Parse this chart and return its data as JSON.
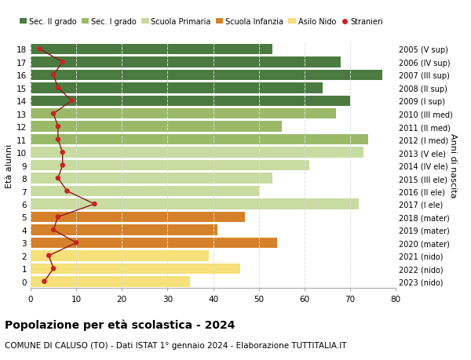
{
  "ages": [
    0,
    1,
    2,
    3,
    4,
    5,
    6,
    7,
    8,
    9,
    10,
    11,
    12,
    13,
    14,
    15,
    16,
    17,
    18
  ],
  "years": [
    "2023 (nido)",
    "2022 (nido)",
    "2021 (nido)",
    "2020 (mater)",
    "2019 (mater)",
    "2018 (mater)",
    "2017 (I ele)",
    "2016 (II ele)",
    "2015 (III ele)",
    "2014 (IV ele)",
    "2013 (V ele)",
    "2012 (I med)",
    "2011 (II med)",
    "2010 (III med)",
    "2009 (I sup)",
    "2008 (II sup)",
    "2007 (III sup)",
    "2006 (IV sup)",
    "2005 (V sup)"
  ],
  "values": [
    35,
    46,
    39,
    54,
    41,
    47,
    72,
    50,
    53,
    61,
    73,
    74,
    55,
    67,
    70,
    64,
    77,
    68,
    53
  ],
  "stranieri": [
    3,
    5,
    4,
    10,
    5,
    6,
    14,
    8,
    6,
    7,
    7,
    6,
    6,
    5,
    9,
    6,
    5,
    7,
    2
  ],
  "bar_colors": [
    "#f5e07a",
    "#f5e07a",
    "#f5e07a",
    "#d4812a",
    "#d4812a",
    "#d4812a",
    "#c8dba0",
    "#c8dba0",
    "#c8dba0",
    "#c8dba0",
    "#c8dba0",
    "#9aba6a",
    "#9aba6a",
    "#9aba6a",
    "#4a7a40",
    "#4a7a40",
    "#4a7a40",
    "#4a7a40",
    "#4a7a40"
  ],
  "legend_colors": [
    "#4a7a40",
    "#9aba6a",
    "#c8dba0",
    "#d4812a",
    "#f5e07a",
    "#cc2222"
  ],
  "legend_labels": [
    "Sec. II grado",
    "Sec. I grado",
    "Scuola Primaria",
    "Scuola Infanzia",
    "Asilo Nido",
    "Stranieri"
  ],
  "ylabel_left": "Età alunni",
  "ylabel_right": "Anni di nascita",
  "title": "Popolazione per età scolastica - 2024",
  "subtitle": "COMUNE DI CALUSO (TO) - Dati ISTAT 1° gennaio 2024 - Elaborazione TUTTITALIA.IT",
  "xlim": [
    0,
    80
  ],
  "background_color": "#ffffff",
  "grid_color": "#dddddd",
  "stranieri_color": "#cc2222",
  "line_color": "#8b1a1a"
}
